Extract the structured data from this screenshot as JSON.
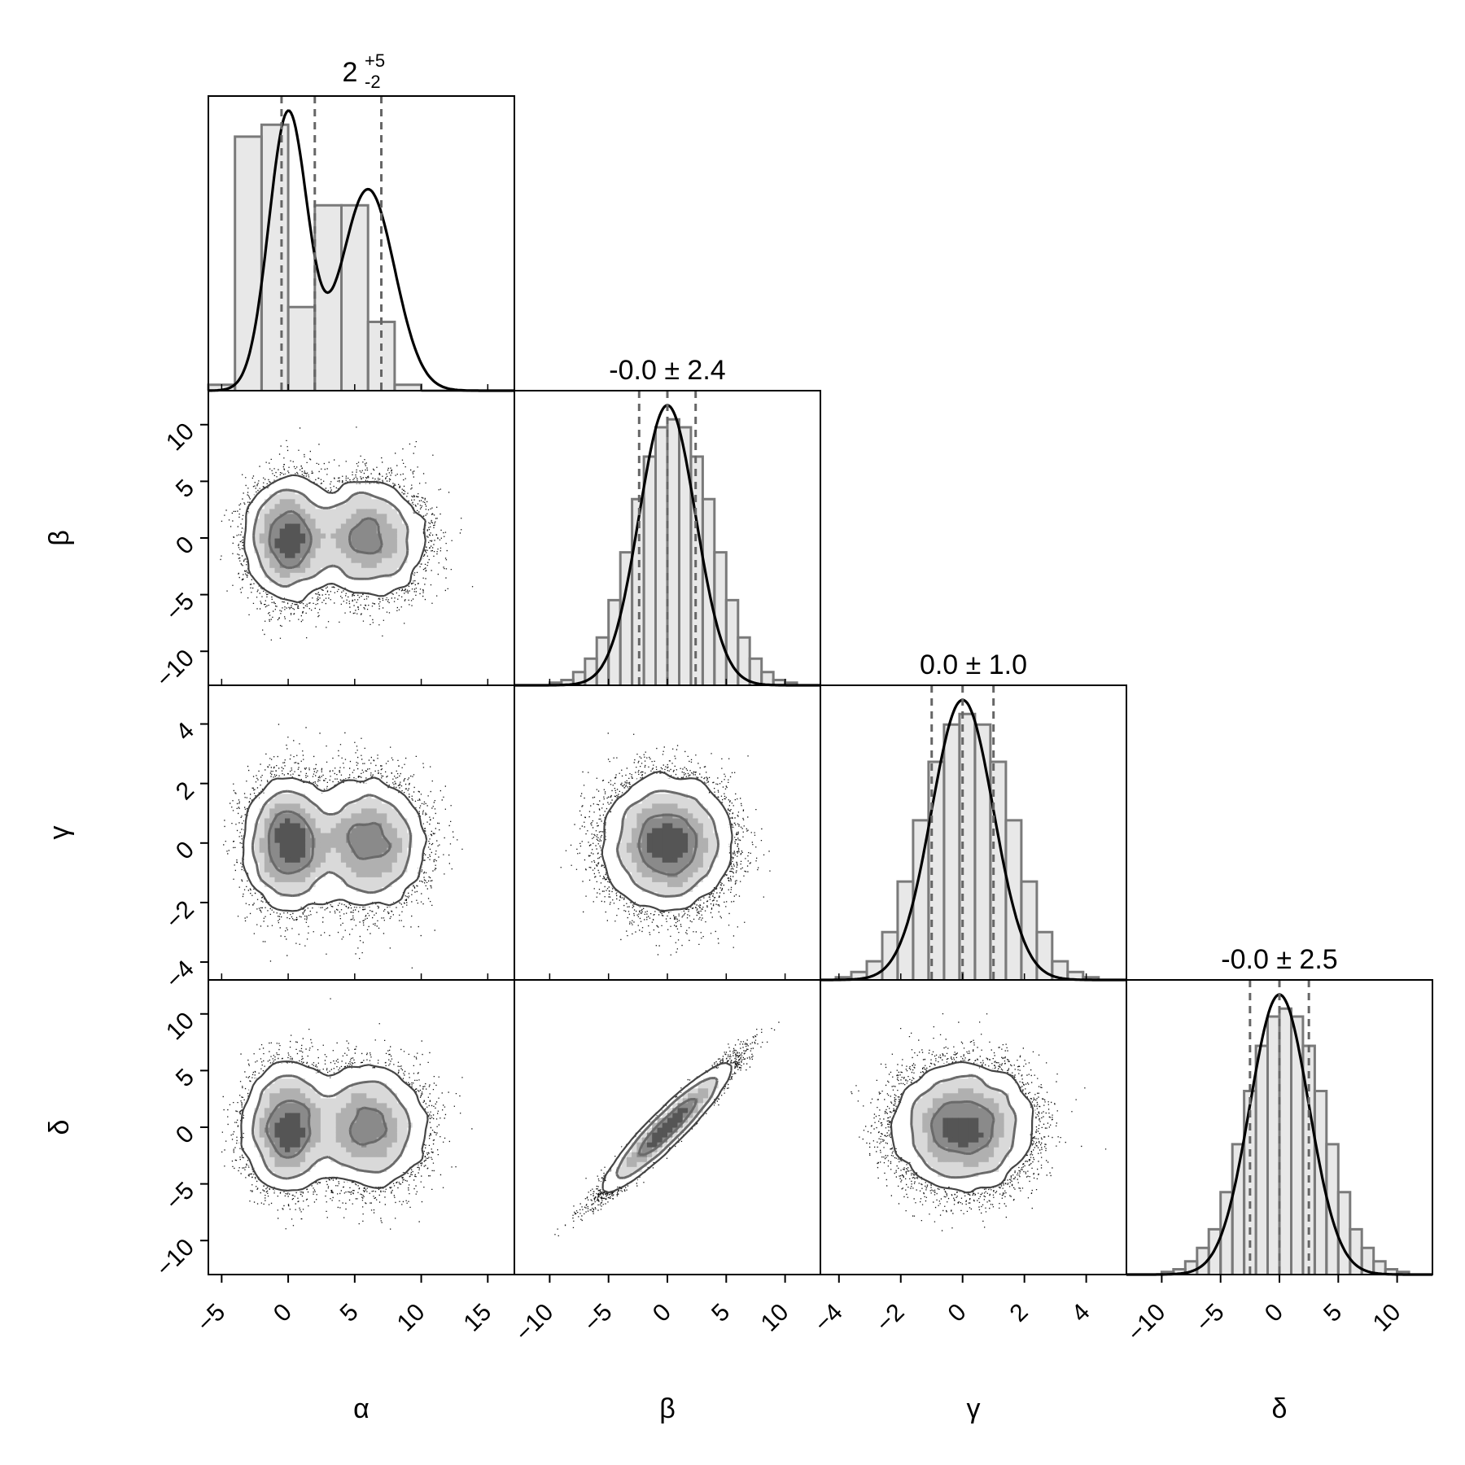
{
  "chart_data": {
    "type": "corner",
    "parameters": [
      "α",
      "β",
      "γ",
      "δ"
    ],
    "titles": [
      {
        "value": "2",
        "sup": "+5",
        "sub": "-2"
      },
      {
        "text": "-0.0 ± 2.4"
      },
      {
        "text": "0.0 ± 1.0"
      },
      {
        "text": "-0.0 ± 2.5"
      }
    ],
    "ranges": [
      [
        -6,
        17
      ],
      [
        -13,
        13
      ],
      [
        -4.6,
        5.3
      ],
      [
        -13,
        13
      ]
    ],
    "ticks": [
      [
        -5,
        0,
        5,
        10,
        15
      ],
      [
        -10,
        -5,
        0,
        5,
        10
      ],
      [
        -4,
        -2,
        0,
        2,
        4
      ],
      [
        -10,
        -5,
        0,
        5,
        10
      ]
    ],
    "tick_labels": [
      [
        "−5",
        "0",
        "5",
        "10",
        "15"
      ],
      [
        "−10",
        "−5",
        "0",
        "5",
        "10"
      ],
      [
        "−4",
        "−2",
        "0",
        "2",
        "4"
      ],
      [
        "−10",
        "−5",
        "0",
        "5",
        "10"
      ]
    ],
    "quantiles": [
      [
        -0.5,
        2.0,
        7.0
      ],
      [
        -2.4,
        0.0,
        2.4
      ],
      [
        -1.0,
        0.0,
        1.0
      ],
      [
        -2.5,
        0.0,
        2.5
      ]
    ],
    "histograms": [
      {
        "edges": [
          -6,
          -4,
          -2,
          0,
          2,
          4,
          6,
          8,
          10,
          12,
          14,
          16
        ],
        "counts": [
          0.02,
          0.85,
          0.89,
          0.28,
          0.62,
          0.62,
          0.23,
          0.02,
          0.0,
          0.0,
          0.0
        ]
      },
      {
        "edges": [
          -13,
          -12,
          -11,
          -10,
          -9,
          -8,
          -7,
          -6,
          -5,
          -4,
          -3,
          -2,
          -1,
          0,
          1,
          2,
          3,
          4,
          5,
          6,
          7,
          8,
          9,
          10,
          11,
          12,
          13
        ],
        "counts": [
          0.0,
          0.0,
          0.0,
          0.01,
          0.02,
          0.05,
          0.1,
          0.18,
          0.32,
          0.5,
          0.7,
          0.86,
          0.97,
          1.0,
          0.97,
          0.86,
          0.7,
          0.5,
          0.32,
          0.18,
          0.1,
          0.05,
          0.02,
          0.01,
          0.0,
          0.0
        ]
      },
      {
        "edges": [
          -4.6,
          -4.1,
          -3.6,
          -3.1,
          -2.6,
          -2.1,
          -1.6,
          -1.1,
          -0.6,
          -0.1,
          0.4,
          0.9,
          1.4,
          1.9,
          2.4,
          2.9,
          3.4,
          3.9,
          4.4,
          4.9
        ],
        "counts": [
          0.0,
          0.01,
          0.03,
          0.07,
          0.18,
          0.37,
          0.6,
          0.82,
          0.96,
          1.0,
          0.96,
          0.82,
          0.6,
          0.37,
          0.18,
          0.07,
          0.03,
          0.01,
          0.0
        ]
      },
      {
        "edges": [
          -13,
          -12,
          -11,
          -10,
          -9,
          -8,
          -7,
          -6,
          -5,
          -4,
          -3,
          -2,
          -1,
          0,
          1,
          2,
          3,
          4,
          5,
          6,
          7,
          8,
          9,
          10,
          11,
          12,
          13
        ],
        "counts": [
          0.0,
          0.0,
          0.0,
          0.01,
          0.02,
          0.05,
          0.1,
          0.17,
          0.31,
          0.49,
          0.69,
          0.86,
          0.97,
          1.0,
          0.97,
          0.86,
          0.69,
          0.49,
          0.31,
          0.17,
          0.1,
          0.05,
          0.02,
          0.01,
          0.0,
          0.0
        ]
      }
    ],
    "densities": {
      "alpha": {
        "mixture": [
          {
            "mean": 0,
            "sd": 1.45,
            "weight": 0.5
          },
          {
            "mean": 6,
            "sd": 2.0,
            "weight": 0.5
          }
        ]
      },
      "beta": {
        "mean": 0,
        "sd": 2.4
      },
      "gamma": {
        "mean": 0,
        "sd": 1.0
      },
      "delta": {
        "mean": 0,
        "sd": 2.5
      },
      "beta_delta_correlation": 0.96
    },
    "grid": false
  },
  "colors": {
    "line": "#000000",
    "hist_fill": "#e8e8e8",
    "hist_edge": "#7a7a7a",
    "quantile_line": "#666666",
    "scatter": "#111111"
  }
}
